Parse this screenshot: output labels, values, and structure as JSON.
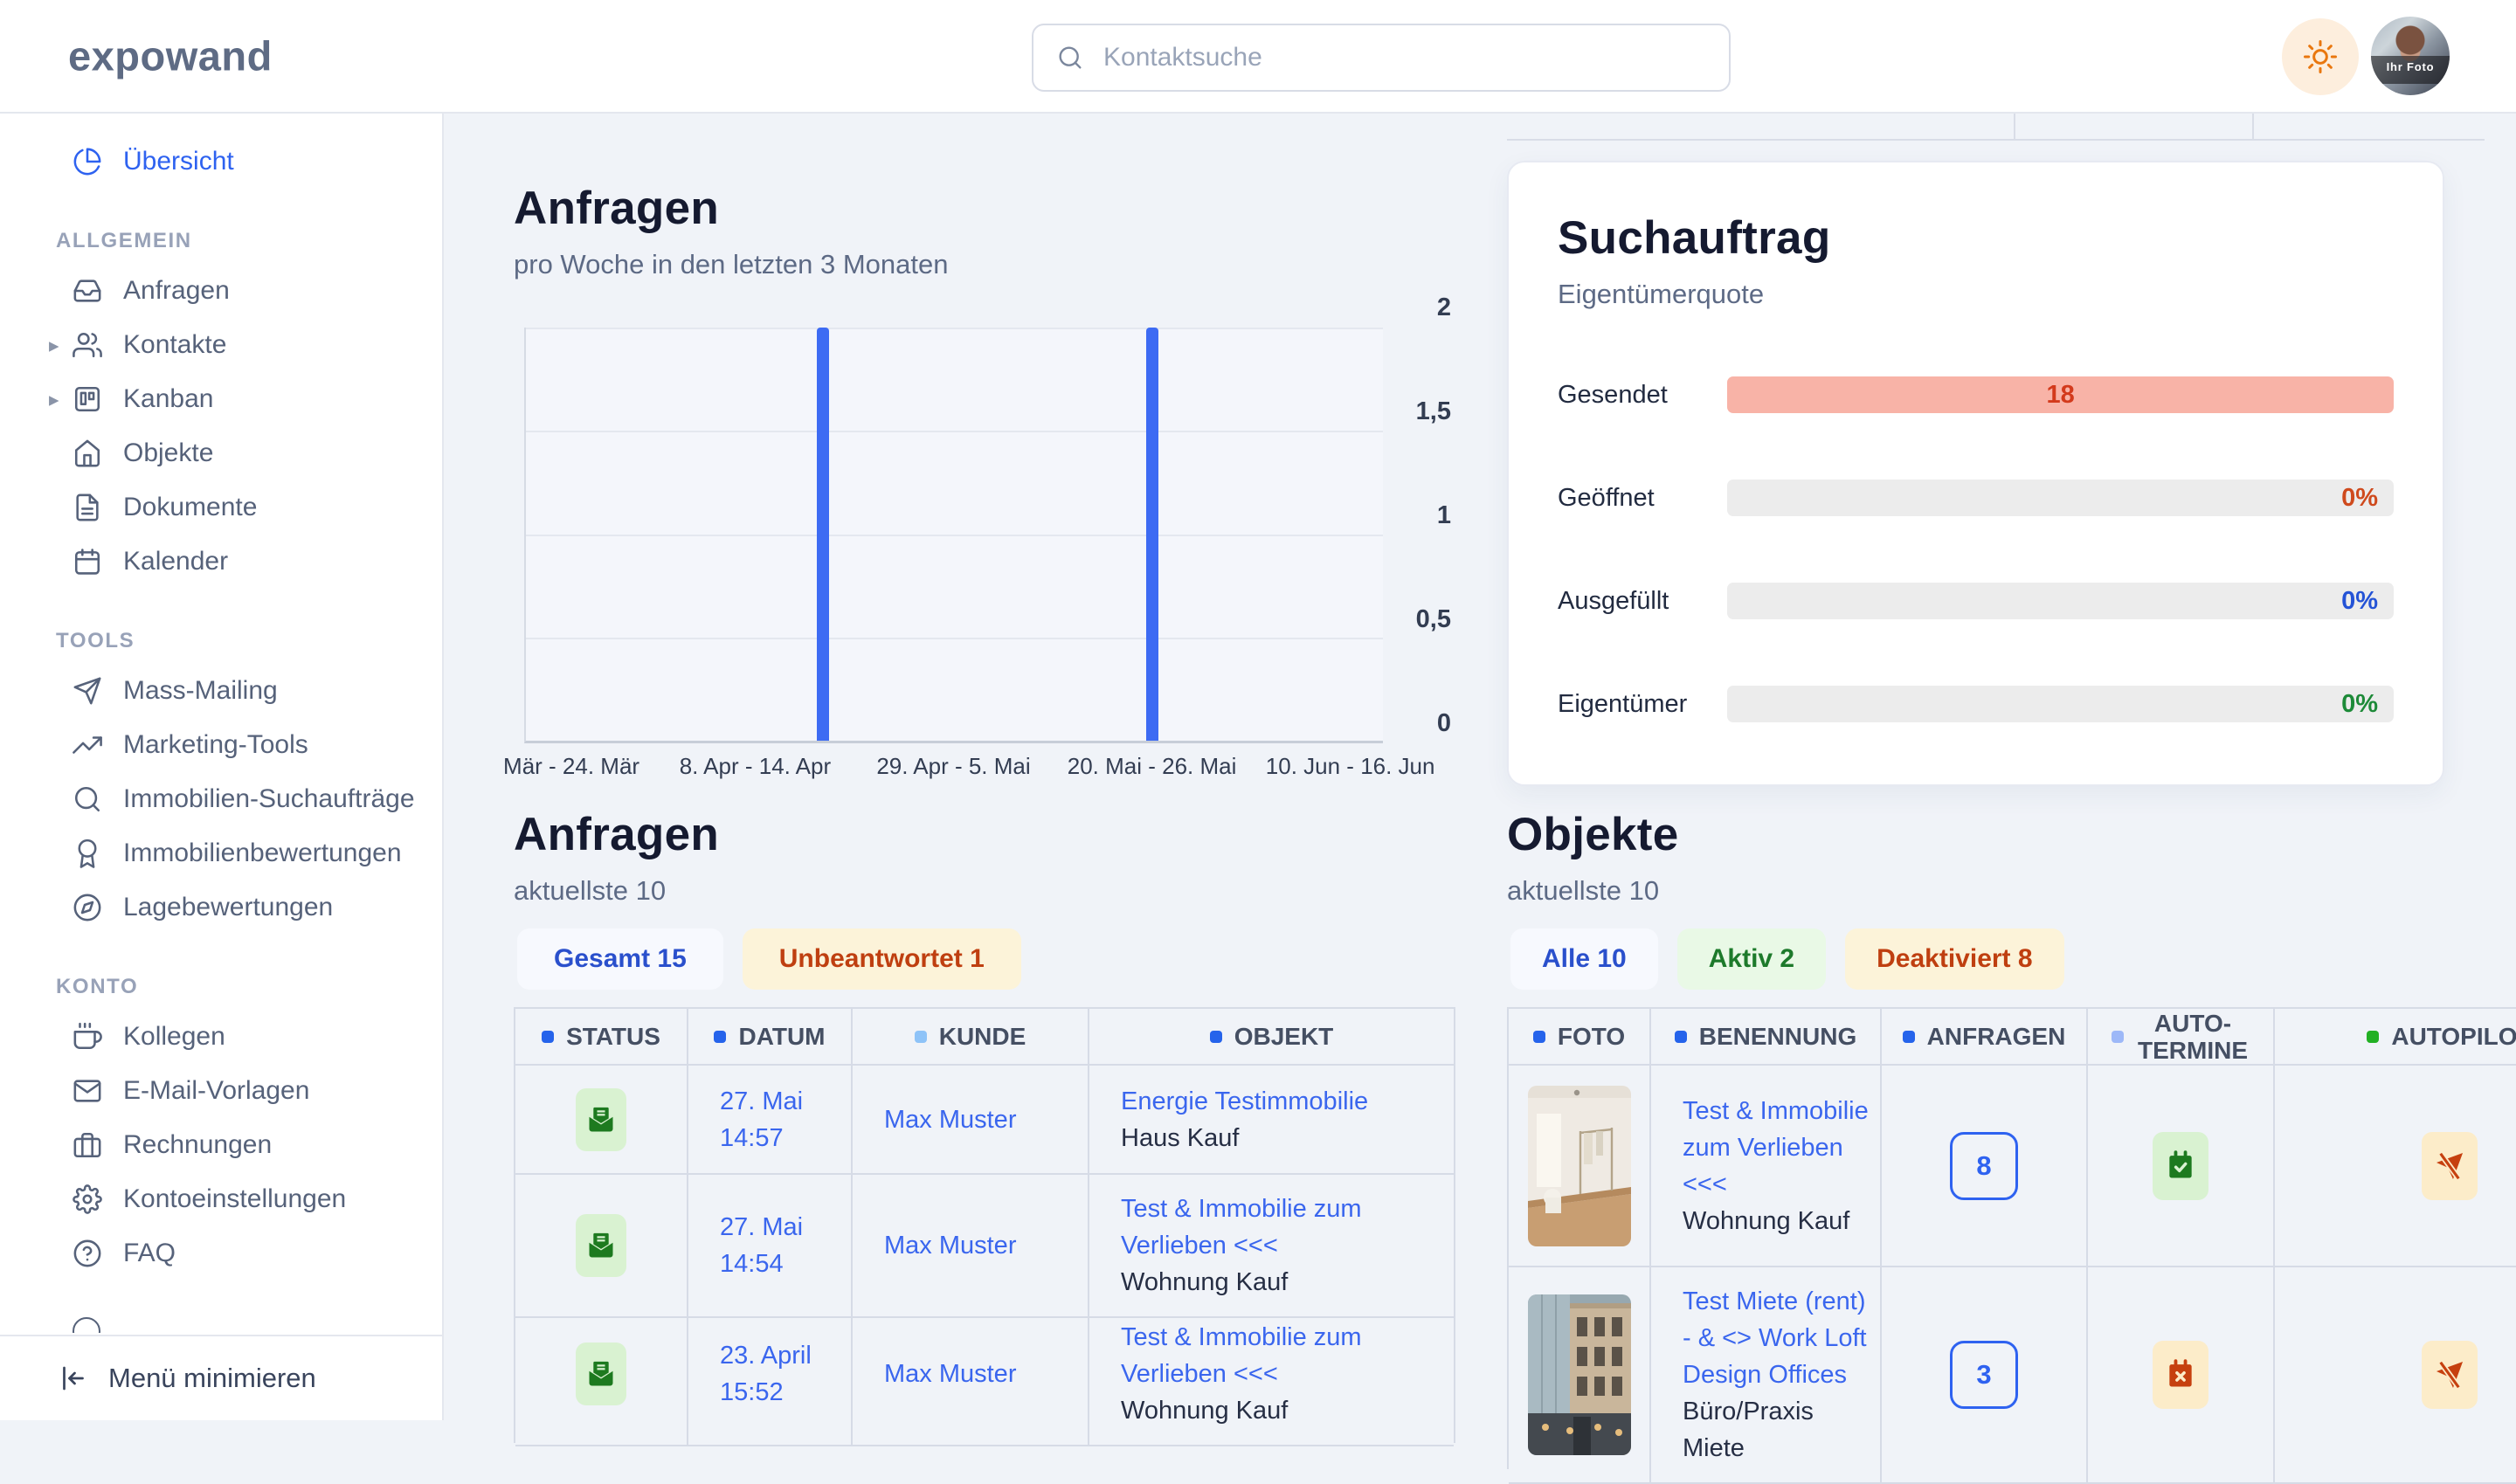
{
  "brand": {
    "logo": "expowand"
  },
  "topbar": {
    "search_placeholder": "Kontaktsuche",
    "avatar_text": "Ihr Foto"
  },
  "sidebar": {
    "overview": {
      "label": "Übersicht",
      "icon": "pie-chart-icon",
      "active": true
    },
    "sections": [
      {
        "title": "ALLGEMEIN",
        "items": [
          {
            "label": "Anfragen",
            "icon": "inbox-icon"
          },
          {
            "label": "Kontakte",
            "icon": "users-icon",
            "expandable": true
          },
          {
            "label": "Kanban",
            "icon": "kanban-icon",
            "expandable": true
          },
          {
            "label": "Objekte",
            "icon": "home-icon"
          },
          {
            "label": "Dokumente",
            "icon": "file-text-icon"
          },
          {
            "label": "Kalender",
            "icon": "calendar-icon"
          }
        ]
      },
      {
        "title": "TOOLS",
        "items": [
          {
            "label": "Mass-Mailing",
            "icon": "paper-plane-icon"
          },
          {
            "label": "Marketing-Tools",
            "icon": "trending-up-icon"
          },
          {
            "label": "Immobilien-Suchaufträge",
            "icon": "search-icon"
          },
          {
            "label": "Immobilienbewertungen",
            "icon": "award-icon"
          },
          {
            "label": "Lagebewertungen",
            "icon": "compass-icon"
          }
        ]
      },
      {
        "title": "KONTO",
        "items": [
          {
            "label": "Kollegen",
            "icon": "coffee-icon"
          },
          {
            "label": "E-Mail-Vorlagen",
            "icon": "mail-icon"
          },
          {
            "label": "Rechnungen",
            "icon": "briefcase-icon"
          },
          {
            "label": "Kontoeinstellungen",
            "icon": "gear-icon"
          },
          {
            "label": "FAQ",
            "icon": "help-circle-icon"
          }
        ]
      }
    ],
    "collapse_label": "Menü minimieren"
  },
  "chart_section": {
    "title": "Anfragen",
    "subtitle": "pro Woche in den letzten 3 Monaten"
  },
  "chart_data": {
    "type": "bar",
    "title": "Anfragen",
    "subtitle": "pro Woche in den letzten 3 Monaten",
    "n_weeks": 13,
    "x_tick_labels": [
      "Mär - 24. Mär",
      "8. Apr - 14. Apr",
      "29. Apr - 5. Mai",
      "20. Mai - 26. Mai",
      "10. Jun - 16. Jun"
    ],
    "x_tick_pct": [
      5.5,
      26.9,
      50,
      73.1,
      96.2
    ],
    "y_ticks": [
      {
        "value": 2,
        "label": "2"
      },
      {
        "value": 1.5,
        "label": "1,5"
      },
      {
        "value": 1,
        "label": "1"
      },
      {
        "value": 0.5,
        "label": "0,5"
      },
      {
        "value": 0,
        "label": "0"
      }
    ],
    "ylim": [
      0,
      2
    ],
    "bars": [
      {
        "week_index": 4,
        "value": 2
      },
      {
        "week_index": 9,
        "value": 2
      }
    ],
    "bar_color": "#3d6bf3",
    "grid": true,
    "y_axis_side": "right",
    "legend": "none"
  },
  "suchauftrag": {
    "title": "Suchauftrag",
    "subtitle": "Eigentümerquote",
    "rows": [
      {
        "label": "Gesendet",
        "value": "18",
        "bar": "filled",
        "bar_color": "#f8b3a7",
        "value_style": "color:#d33a1c"
      },
      {
        "label": "Geöffnet",
        "value": "0%",
        "bar": "empty",
        "bar_color": "#ececec",
        "value_style": "color:#cf4a1d"
      },
      {
        "label": "Ausgefüllt",
        "value": "0%",
        "bar": "empty",
        "bar_color": "#ececec",
        "value_style": "color:#2453d6"
      },
      {
        "label": "Eigentümer",
        "value": "0%",
        "bar": "empty",
        "bar_color": "#ececec",
        "value_style": "color:#1d8a38"
      }
    ]
  },
  "anfragen_table": {
    "title": "Anfragen",
    "subtitle": "aktuellste 10",
    "tabs": [
      {
        "label": "Gesamt 15",
        "style": "blue"
      },
      {
        "label": "Unbeantwortet 1",
        "style": "yellow"
      }
    ],
    "columns": [
      {
        "label": "STATUS",
        "bullet_style": "background:#2563eb"
      },
      {
        "label": "DATUM",
        "bullet_style": "background:#2563eb"
      },
      {
        "label": "KUNDE",
        "bullet_style": "background:#8ec3f8"
      },
      {
        "label": "OBJEKT",
        "bullet_style": "background:#2563eb"
      }
    ],
    "rows": [
      {
        "status_icon": "envelope-open-icon",
        "date1": "27. Mai",
        "date2": "14:57",
        "kunde": "Max Muster",
        "objekt_link": "Energie Testimmobilie",
        "objekt_sub": "Haus Kauf"
      },
      {
        "status_icon": "envelope-open-icon",
        "date1": "27. Mai",
        "date2": "14:54",
        "kunde": "Max Muster",
        "objekt_link": "Test & Immobilie zum Verlieben <<<",
        "objekt_sub": "Wohnung Kauf"
      },
      {
        "status_icon": "envelope-open-icon",
        "date1": "23. April",
        "date2": "15:52",
        "kunde": "Max Muster",
        "objekt_link": "Test & Immobilie zum Verlieben <<<",
        "objekt_sub": "Wohnung Kauf"
      }
    ]
  },
  "objekte_table": {
    "title": "Objekte",
    "subtitle": "aktuellste 10",
    "tabs": [
      {
        "label": "Alle 10",
        "style": "blue"
      },
      {
        "label": "Aktiv 2",
        "style": "green"
      },
      {
        "label": "Deaktiviert 8",
        "style": "yellow"
      }
    ],
    "columns": [
      {
        "label": "FOTO",
        "bullet_style": "background:#2563eb"
      },
      {
        "label": "BENENNUNG",
        "bullet_style": "background:#2563eb"
      },
      {
        "label": "ANFRAGEN",
        "bullet_style": "background:#2563eb"
      },
      {
        "label": "AUTO-TERMINE",
        "bullet_style": "background:#9db8f8"
      },
      {
        "label": "AUTOPILOT",
        "bullet_style": "background:#22b024"
      }
    ],
    "rows": [
      {
        "photo": "interior-room-photo",
        "benennung_link": "Test & Immobilie zum Verlieben <<<",
        "benennung_sub": "Wohnung Kauf",
        "anfragen": "8",
        "auto_termine_icon": "calendar-check-icon",
        "auto_termine_style": "green",
        "autopilot_icon": "send-slash-icon",
        "autopilot_style": "amber"
      },
      {
        "photo": "building-facade-photo",
        "benennung_link": "Test Miete (rent) - & <> Work Loft Design Offices",
        "benennung_sub": "Büro/Praxis Miete",
        "anfragen": "3",
        "auto_termine_icon": "calendar-x-icon",
        "auto_termine_style": "amber",
        "autopilot_icon": "send-slash-icon",
        "autopilot_style": "amber"
      }
    ]
  },
  "colors": {
    "accent_blue": "#2e62f0",
    "bar_blue": "#3d6bf3",
    "salmon_bar": "#f8b3a7",
    "status_green_bg": "#d9f2d1",
    "status_green_fg": "#1d7a1f",
    "status_amber_bg": "#fcecc9",
    "status_amber_fg": "#c6400f",
    "page_bg": "#f0f3f8"
  }
}
